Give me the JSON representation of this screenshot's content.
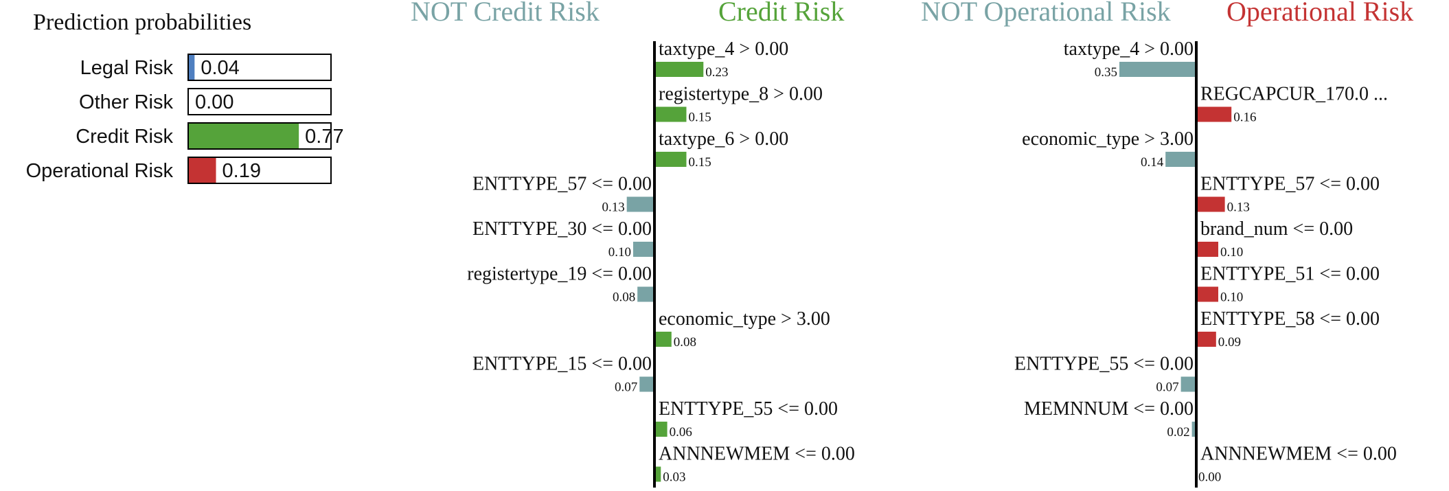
{
  "colors": {
    "positive_credit": "#55a33a",
    "positive_operational": "#c43333",
    "negative": "#79a3a5",
    "legal": "#4f7fc0",
    "other": "#9a9a9a",
    "axis": "#000000",
    "text": "#111111"
  },
  "chart_data": [
    {
      "type": "bar",
      "orientation": "horizontal",
      "title": "Prediction probabilities",
      "categories": [
        "Legal Risk",
        "Other Risk",
        "Credit Risk",
        "Operational Risk"
      ],
      "values": [
        0.04,
        0.0,
        0.77,
        0.19
      ],
      "value_labels": [
        "0.04",
        "0.00",
        "0.77",
        "0.19"
      ],
      "xlim": [
        0,
        1
      ],
      "bar_colors": [
        "legal",
        "other",
        "positive_credit",
        "positive_operational"
      ],
      "grid": false
    },
    {
      "type": "bar",
      "orientation": "horizontal",
      "negative_label": "NOT Credit Risk",
      "positive_label": "Credit Risk",
      "positive_color": "positive_credit",
      "grid": false,
      "features": [
        {
          "label": "taxtype_4 > 0.00",
          "value": 0.23,
          "value_label": "0.23"
        },
        {
          "label": "registertype_8 > 0.00",
          "value": 0.15,
          "value_label": "0.15"
        },
        {
          "label": "taxtype_6 > 0.00",
          "value": 0.15,
          "value_label": "0.15"
        },
        {
          "label": "ENTTYPE_57 <= 0.00",
          "value": -0.13,
          "value_label": "0.13"
        },
        {
          "label": "ENTTYPE_30 <= 0.00",
          "value": -0.1,
          "value_label": "0.10"
        },
        {
          "label": "registertype_19 <= 0.00",
          "value": -0.08,
          "value_label": "0.08"
        },
        {
          "label": "economic_type > 3.00",
          "value": 0.08,
          "value_label": "0.08"
        },
        {
          "label": "ENTTYPE_15 <= 0.00",
          "value": -0.07,
          "value_label": "0.07"
        },
        {
          "label": "ENTTYPE_55 <= 0.00",
          "value": 0.06,
          "value_label": "0.06"
        },
        {
          "label": "ANNNEWMEM <= 0.00",
          "value": 0.03,
          "value_label": "0.03"
        }
      ]
    },
    {
      "type": "bar",
      "orientation": "horizontal",
      "negative_label": "NOT Operational Risk",
      "positive_label": "Operational Risk",
      "positive_color": "positive_operational",
      "grid": false,
      "features": [
        {
          "label": "taxtype_4 > 0.00",
          "value": -0.35,
          "value_label": "0.35"
        },
        {
          "label": "REGCAPCUR_170.0 ...",
          "value": 0.16,
          "value_label": "0.16"
        },
        {
          "label": "economic_type > 3.00",
          "value": -0.14,
          "value_label": "0.14"
        },
        {
          "label": "ENTTYPE_57 <= 0.00",
          "value": 0.13,
          "value_label": "0.13"
        },
        {
          "label": "brand_num <= 0.00",
          "value": 0.1,
          "value_label": "0.10"
        },
        {
          "label": "ENTTYPE_51 <= 0.00",
          "value": 0.1,
          "value_label": "0.10"
        },
        {
          "label": "ENTTYPE_58 <= 0.00",
          "value": 0.09,
          "value_label": "0.09"
        },
        {
          "label": "ENTTYPE_55 <= 0.00",
          "value": -0.07,
          "value_label": "0.07"
        },
        {
          "label": "MEMNNUM <= 0.00",
          "value": -0.02,
          "value_label": "0.02"
        },
        {
          "label": "ANNNEWMEM <= 0.00",
          "value": 0.0,
          "value_label": "0.00"
        }
      ]
    }
  ]
}
